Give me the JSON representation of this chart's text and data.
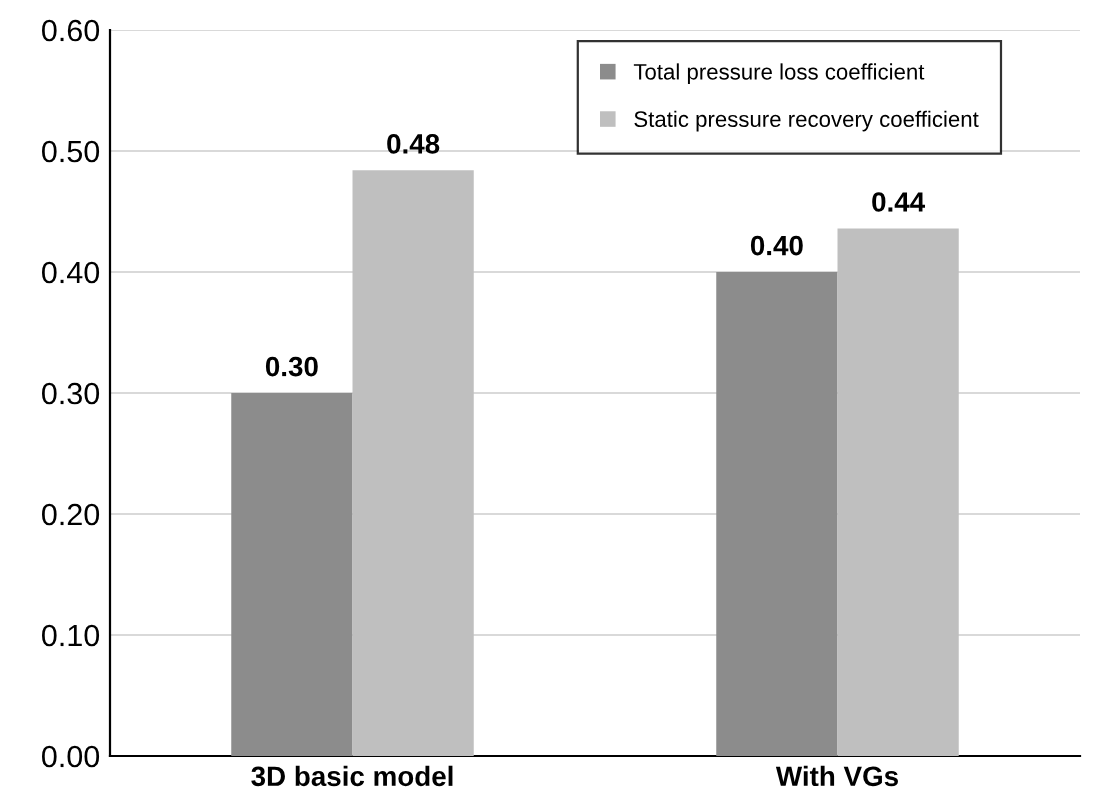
{
  "chart_data": {
    "type": "bar",
    "categories": [
      "3D basic model",
      "With VGs"
    ],
    "series": [
      {
        "name": "Total pressure loss coefficient",
        "color": "#8c8c8c",
        "values": [
          0.3,
          0.4
        ],
        "value_labels": [
          "0.30",
          "0.40"
        ]
      },
      {
        "name": "Static pressure recovery coefficient",
        "color": "#bfbfbf",
        "values": [
          0.484,
          0.436
        ],
        "value_labels": [
          "0.48",
          "0.44"
        ]
      }
    ],
    "ylim": [
      0,
      0.6
    ],
    "yticks": [
      {
        "value": 0,
        "label": "0.00"
      },
      {
        "value": 0.1,
        "label": "0.10"
      },
      {
        "value": 0.2,
        "label": "0.20"
      },
      {
        "value": 0.3,
        "label": "0.30"
      },
      {
        "value": 0.4,
        "label": "0.40"
      },
      {
        "value": 0.5,
        "label": "0.50"
      },
      {
        "value": 0.6,
        "label": "0.60"
      }
    ],
    "grid": "y",
    "legend": "top right"
  }
}
